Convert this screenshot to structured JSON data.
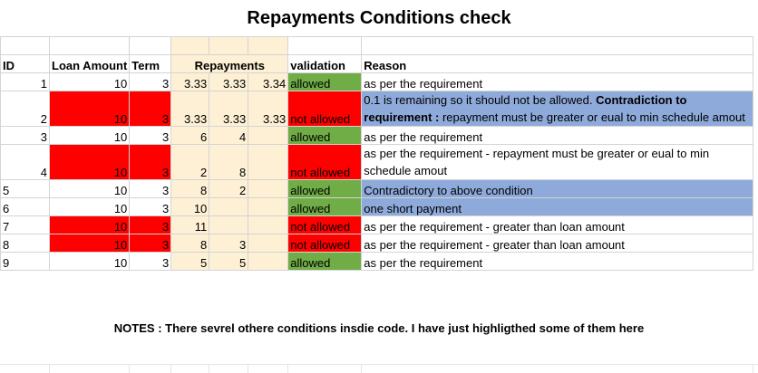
{
  "title": "Repayments Conditions check",
  "headers": {
    "id": "ID",
    "loan_amount": "Loan Amount",
    "term": "Term",
    "repayments": "Repayments",
    "validation": "validation",
    "reason": "Reason"
  },
  "rows": [
    {
      "id": "1",
      "loan": "10",
      "term": "3",
      "r1": "3.33",
      "r2": "3.33",
      "r3": "3.34",
      "validation": "allowed",
      "reason": "as per the requirement"
    },
    {
      "id": "2",
      "loan": "10",
      "term": "3",
      "r1": "3.33",
      "r2": "3.33",
      "r3": "3.33",
      "validation": "not allowed",
      "reason_a": "0.1 is remaining so it should not be allowed. ",
      "reason_bold": "Contradiction to requirement :",
      "reason_b": " repayment must be greater or eual to min schedule amout"
    },
    {
      "id": "3",
      "loan": "10",
      "term": "3",
      "r1": "6",
      "r2": "4",
      "r3": "",
      "validation": "allowed",
      "reason": "as per the requirement"
    },
    {
      "id": "4",
      "loan": "10",
      "term": "3",
      "r1": "2",
      "r2": "8",
      "r3": "",
      "validation": "not allowed",
      "reason": "as per the requirement - repayment must be greater or eual to min schedule amout"
    },
    {
      "id": "5",
      "loan": "10",
      "term": "3",
      "r1": "8",
      "r2": "2",
      "r3": "",
      "validation": "allowed",
      "reason": "Contradictory to above condition"
    },
    {
      "id": "6",
      "loan": "10",
      "term": "3",
      "r1": "10",
      "r2": "",
      "r3": "",
      "validation": "allowed",
      "reason": "one short payment"
    },
    {
      "id": "7",
      "loan": "10",
      "term": "3",
      "r1": "11",
      "r2": "",
      "r3": "",
      "validation": "not allowed",
      "reason": "as per the requirement - greater than loan amount"
    },
    {
      "id": "8",
      "loan": "10",
      "term": "3",
      "r1": "8",
      "r2": "3",
      "r3": "",
      "validation": "not allowed",
      "reason": "as per the requirement - greater than loan amount"
    },
    {
      "id": "9",
      "loan": "10",
      "term": "3",
      "r1": "5",
      "r2": "5",
      "r3": "",
      "validation": "allowed",
      "reason": "as per the requirement"
    }
  ],
  "notes": "NOTES : There sevrel othere conditions insdie code. I have just highligthed some of them here",
  "colors": {
    "red": "#ff0000",
    "green": "#70ad47",
    "blue": "#8eaadb",
    "repayments": "#fdf0d5"
  }
}
